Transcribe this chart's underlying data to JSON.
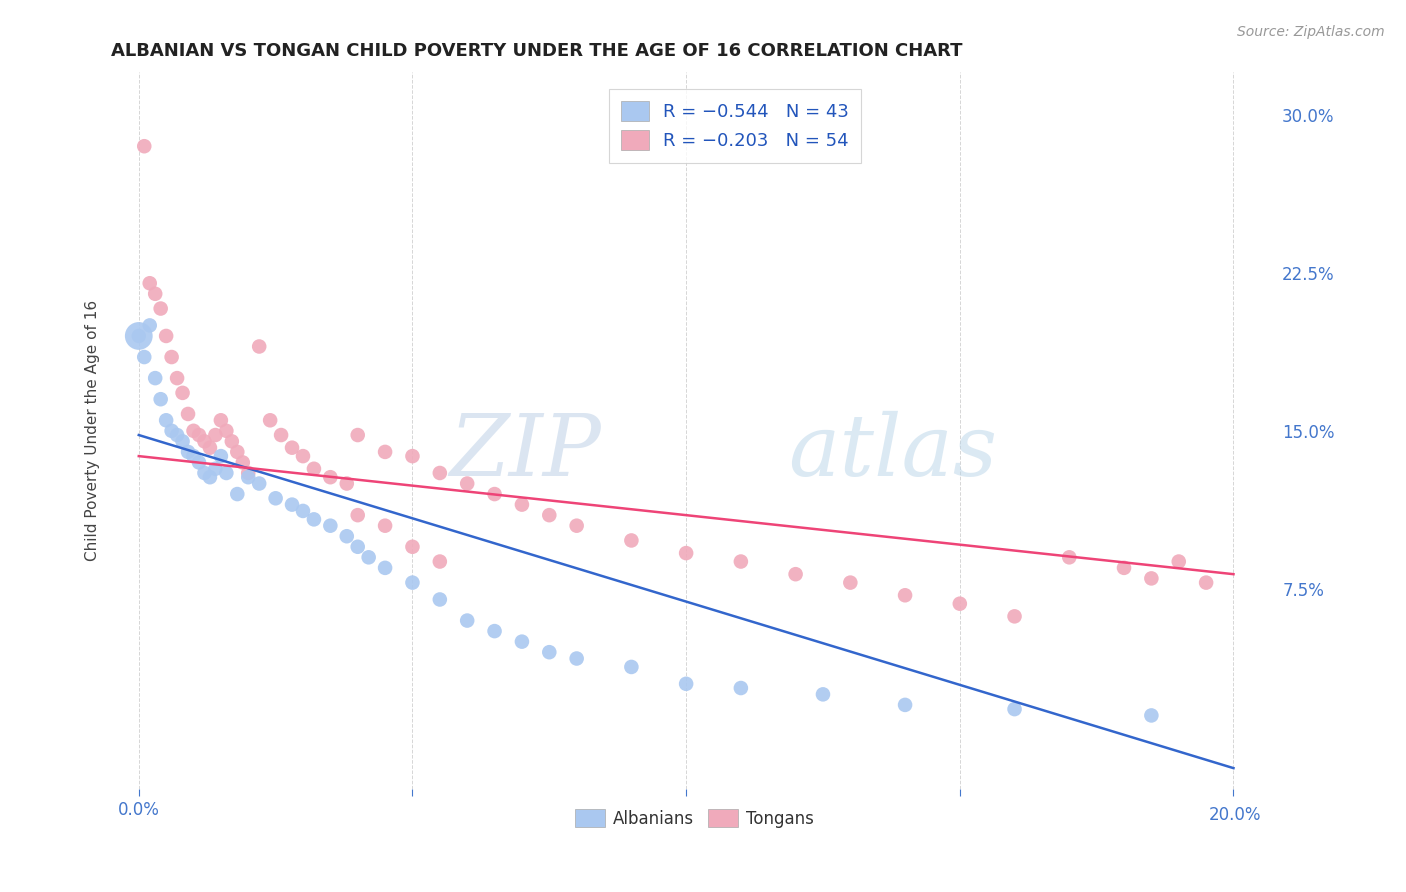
{
  "title": "ALBANIAN VS TONGAN CHILD POVERTY UNDER THE AGE OF 16 CORRELATION CHART",
  "source": "Source: ZipAtlas.com",
  "ylabel": "Child Poverty Under the Age of 16",
  "right_yticks": [
    "7.5%",
    "15.0%",
    "22.5%",
    "30.0%"
  ],
  "right_ytick_vals": [
    0.075,
    0.15,
    0.225,
    0.3
  ],
  "xlim": [
    -0.005,
    0.208
  ],
  "ylim": [
    -0.02,
    0.32
  ],
  "albanian_color": "#aac8f0",
  "tongan_color": "#f0aabb",
  "albanian_line_color": "#3366cc",
  "tongan_line_color": "#ee4477",
  "background_color": "#ffffff",
  "grid_color": "#cccccc",
  "albanians_label": "Albanians",
  "tongans_label": "Tongans",
  "albanian_scatter_x": [
    0.0,
    0.001,
    0.002,
    0.003,
    0.004,
    0.005,
    0.006,
    0.007,
    0.008,
    0.009,
    0.01,
    0.011,
    0.012,
    0.013,
    0.014,
    0.015,
    0.016,
    0.018,
    0.02,
    0.022,
    0.025,
    0.028,
    0.03,
    0.032,
    0.035,
    0.038,
    0.04,
    0.042,
    0.045,
    0.05,
    0.055,
    0.06,
    0.065,
    0.07,
    0.075,
    0.08,
    0.09,
    0.1,
    0.11,
    0.125,
    0.14,
    0.16,
    0.185
  ],
  "albanian_scatter_y": [
    0.195,
    0.185,
    0.2,
    0.175,
    0.165,
    0.155,
    0.15,
    0.148,
    0.145,
    0.14,
    0.138,
    0.135,
    0.13,
    0.128,
    0.132,
    0.138,
    0.13,
    0.12,
    0.128,
    0.125,
    0.118,
    0.115,
    0.112,
    0.108,
    0.105,
    0.1,
    0.095,
    0.09,
    0.085,
    0.078,
    0.07,
    0.06,
    0.055,
    0.05,
    0.045,
    0.042,
    0.038,
    0.03,
    0.028,
    0.025,
    0.02,
    0.018,
    0.015
  ],
  "tongan_scatter_x": [
    0.001,
    0.002,
    0.003,
    0.004,
    0.005,
    0.006,
    0.007,
    0.008,
    0.009,
    0.01,
    0.011,
    0.012,
    0.013,
    0.014,
    0.015,
    0.016,
    0.017,
    0.018,
    0.019,
    0.02,
    0.022,
    0.024,
    0.026,
    0.028,
    0.03,
    0.032,
    0.035,
    0.038,
    0.04,
    0.045,
    0.05,
    0.055,
    0.06,
    0.065,
    0.07,
    0.075,
    0.08,
    0.09,
    0.1,
    0.11,
    0.12,
    0.13,
    0.14,
    0.15,
    0.16,
    0.17,
    0.18,
    0.185,
    0.19,
    0.195,
    0.04,
    0.045,
    0.05,
    0.055
  ],
  "tongan_scatter_y": [
    0.285,
    0.22,
    0.215,
    0.208,
    0.195,
    0.185,
    0.175,
    0.168,
    0.158,
    0.15,
    0.148,
    0.145,
    0.142,
    0.148,
    0.155,
    0.15,
    0.145,
    0.14,
    0.135,
    0.13,
    0.19,
    0.155,
    0.148,
    0.142,
    0.138,
    0.132,
    0.128,
    0.125,
    0.148,
    0.14,
    0.138,
    0.13,
    0.125,
    0.12,
    0.115,
    0.11,
    0.105,
    0.098,
    0.092,
    0.088,
    0.082,
    0.078,
    0.072,
    0.068,
    0.062,
    0.09,
    0.085,
    0.08,
    0.088,
    0.078,
    0.11,
    0.105,
    0.095,
    0.088
  ],
  "alb_line_x0": 0.0,
  "alb_line_y0": 0.148,
  "alb_line_x1": 0.2,
  "alb_line_y1": -0.01,
  "ton_line_x0": 0.0,
  "ton_line_y0": 0.138,
  "ton_line_x1": 0.2,
  "ton_line_y1": 0.082,
  "watermark_zip": "ZIP",
  "watermark_atlas": "atlas"
}
